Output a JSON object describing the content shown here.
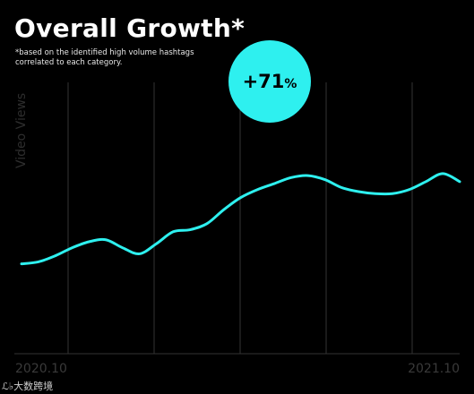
{
  "header": {
    "title": "Overall Growth*",
    "subtitle_line1": "*based on the identified high volume hashtags",
    "subtitle_line2": "correlated to each category."
  },
  "badge": {
    "value": "+71",
    "unit": "%"
  },
  "watermark": "ℒ♭大数跨境",
  "colors": {
    "background": "#000000",
    "line": "#2ef0ef",
    "badge": "#2ef0ef",
    "gridline": "#333333"
  },
  "chart_data": {
    "type": "line",
    "title": "Overall Growth*",
    "ylabel": "Video Views",
    "xlabel": "",
    "x_tick_labels": [
      "2020.10",
      "2021.10"
    ],
    "x_domain": [
      0,
      13
    ],
    "ylim": [
      0,
      100
    ],
    "grid": "vertical",
    "annotation": "+71%",
    "series": [
      {
        "x": [
          0,
          0.5,
          1,
          1.5,
          2,
          2.5,
          3,
          3.5,
          4,
          4.5,
          5,
          5.5,
          6,
          6.5,
          7,
          7.5,
          8,
          8.5,
          9,
          9.5,
          10,
          10.5,
          11,
          11.5,
          12,
          12.5,
          13
        ],
        "values": [
          39,
          40,
          43,
          47,
          50,
          51,
          47,
          44,
          49,
          55,
          56,
          59,
          66,
          72,
          76,
          79,
          82,
          83,
          81,
          77,
          75,
          74,
          74,
          76,
          80,
          84,
          80
        ]
      }
    ]
  }
}
